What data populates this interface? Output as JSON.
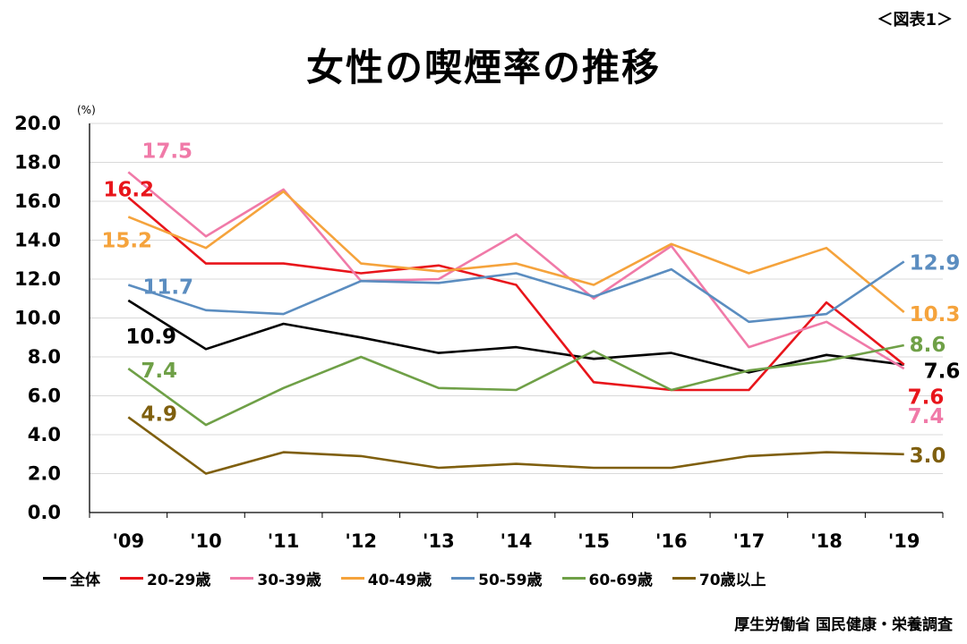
{
  "figure_label": "＜図表1＞",
  "source": "厚生労働省 国民健康・栄養調査",
  "chart_data": {
    "type": "line",
    "title": "女性の喫煙率の推移",
    "unit": "(%)",
    "categories": [
      "'09",
      "'10",
      "'11",
      "'12",
      "'13",
      "'14",
      "'15",
      "'16",
      "'17",
      "'18",
      "'19"
    ],
    "ylim": [
      0,
      20
    ],
    "yticks": [
      "0.0",
      "2.0",
      "4.0",
      "6.0",
      "8.0",
      "10.0",
      "12.0",
      "14.0",
      "16.0",
      "18.0",
      "20.0"
    ],
    "grid": true,
    "legend_position": "bottom",
    "series": [
      {
        "name": "全体",
        "color": "#000000",
        "values": [
          10.9,
          8.4,
          9.7,
          9.0,
          8.2,
          8.5,
          7.9,
          8.2,
          7.2,
          8.1,
          7.6
        ],
        "start_label": "10.9",
        "end_label": "7.6"
      },
      {
        "name": "20-29歳",
        "color": "#e8151b",
        "values": [
          16.2,
          12.8,
          12.8,
          12.3,
          12.7,
          11.7,
          6.7,
          6.3,
          6.3,
          10.8,
          7.6
        ],
        "start_label": "16.2",
        "end_label": "7.6"
      },
      {
        "name": "30-39歳",
        "color": "#f07aa8",
        "values": [
          17.5,
          14.2,
          16.6,
          11.9,
          12.0,
          14.3,
          11.0,
          13.7,
          8.5,
          9.8,
          7.4
        ],
        "start_label": "17.5",
        "end_label": "7.4"
      },
      {
        "name": "40-49歳",
        "color": "#f5a33c",
        "values": [
          15.2,
          13.6,
          16.5,
          12.8,
          12.4,
          12.8,
          11.7,
          13.8,
          12.3,
          13.6,
          10.3
        ],
        "start_label": "15.2",
        "end_label": "10.3"
      },
      {
        "name": "50-59歳",
        "color": "#5b8dc0",
        "values": [
          11.7,
          10.4,
          10.2,
          11.9,
          11.8,
          12.3,
          11.1,
          12.5,
          9.8,
          10.2,
          12.9
        ],
        "start_label": "11.7",
        "end_label": "12.9"
      },
      {
        "name": "60-69歳",
        "color": "#6fa047",
        "values": [
          7.4,
          4.5,
          6.4,
          8.0,
          6.4,
          6.3,
          8.3,
          6.3,
          7.3,
          7.8,
          8.6
        ],
        "start_label": "7.4",
        "end_label": "8.6"
      },
      {
        "name": "70歳以上",
        "color": "#7f5f0e",
        "values": [
          4.9,
          2.0,
          3.1,
          2.9,
          2.3,
          2.5,
          2.3,
          2.3,
          2.9,
          3.1,
          3.0
        ],
        "start_label": "4.9",
        "end_label": "3.0"
      }
    ]
  }
}
